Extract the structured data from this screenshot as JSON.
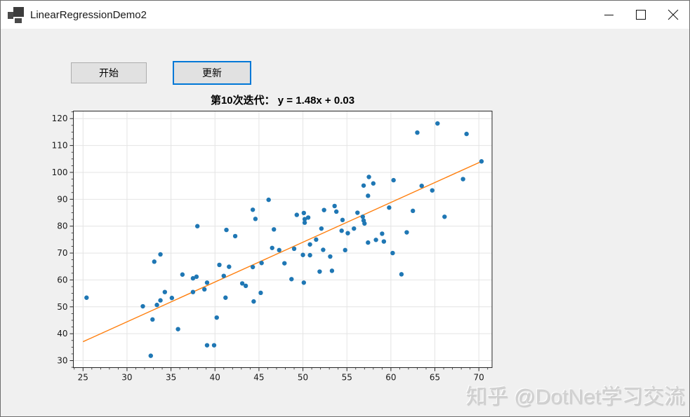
{
  "window": {
    "title": "LinearRegressionDemo2"
  },
  "toolbar": {
    "start_label": "开始",
    "update_label": "更新"
  },
  "watermark": {
    "text": "知乎 @DotNet学习交流"
  },
  "colors": {
    "form_background": "#f0f0f0",
    "titlebar_background": "#ffffff",
    "button_background": "#e1e1e1",
    "button_border": "#adadad",
    "focused_button_border": "#0078d7",
    "plot_background": "#ffffff",
    "grid": "#e4e4e4",
    "axis": "#262626",
    "point": "#1f77b4",
    "line": "#ff7f0e"
  },
  "chart_data": {
    "type": "scatter",
    "title": "第10次迭代： y = 1.48x + 0.03",
    "xlabel": "",
    "ylabel": "",
    "xlim": [
      23.9,
      71.5
    ],
    "ylim": [
      27.4,
      122.8
    ],
    "x_ticks": [
      25,
      30,
      35,
      40,
      45,
      50,
      55,
      60,
      65,
      70
    ],
    "y_ticks": [
      30,
      40,
      50,
      60,
      70,
      80,
      90,
      100,
      110,
      120
    ],
    "x_minor_step": 1,
    "y_minor_step": 2.5,
    "grid": true,
    "legend": "none",
    "point_color": "#1f77b4",
    "points": [
      [
        25.4,
        53.4
      ],
      [
        31.8,
        50.2
      ],
      [
        32.7,
        31.8
      ],
      [
        32.9,
        45.3
      ],
      [
        33.1,
        66.8
      ],
      [
        33.4,
        50.7
      ],
      [
        33.8,
        69.5
      ],
      [
        33.8,
        52.4
      ],
      [
        34.3,
        55.5
      ],
      [
        35.1,
        53.3
      ],
      [
        35.8,
        41.7
      ],
      [
        36.3,
        62.0
      ],
      [
        37.5,
        60.6
      ],
      [
        37.9,
        61.2
      ],
      [
        37.5,
        55.5
      ],
      [
        38.0,
        80.0
      ],
      [
        38.8,
        56.5
      ],
      [
        39.1,
        59.0
      ],
      [
        39.1,
        35.7
      ],
      [
        39.9,
        35.7
      ],
      [
        40.2,
        46.0
      ],
      [
        40.5,
        65.6
      ],
      [
        41.0,
        61.5
      ],
      [
        41.2,
        53.4
      ],
      [
        41.3,
        78.6
      ],
      [
        41.6,
        64.9
      ],
      [
        42.3,
        76.3
      ],
      [
        43.1,
        58.7
      ],
      [
        43.5,
        57.8
      ],
      [
        44.3,
        64.8
      ],
      [
        44.3,
        86.1
      ],
      [
        44.4,
        52.0
      ],
      [
        44.6,
        82.7
      ],
      [
        45.2,
        55.2
      ],
      [
        45.3,
        66.3
      ],
      [
        46.1,
        89.8
      ],
      [
        46.5,
        71.9
      ],
      [
        46.7,
        78.8
      ],
      [
        47.3,
        71.1
      ],
      [
        47.9,
        66.2
      ],
      [
        48.7,
        60.3
      ],
      [
        49.0,
        71.6
      ],
      [
        49.3,
        84.2
      ],
      [
        50.0,
        69.3
      ],
      [
        50.1,
        84.9
      ],
      [
        50.1,
        59.0
      ],
      [
        50.2,
        82.6
      ],
      [
        50.2,
        81.3
      ],
      [
        50.6,
        83.2
      ],
      [
        50.8,
        69.2
      ],
      [
        50.8,
        73.2
      ],
      [
        51.5,
        75.0
      ],
      [
        51.9,
        63.1
      ],
      [
        52.1,
        79.1
      ],
      [
        52.3,
        71.2
      ],
      [
        52.4,
        86.0
      ],
      [
        53.1,
        68.7
      ],
      [
        53.3,
        63.4
      ],
      [
        53.6,
        87.5
      ],
      [
        53.8,
        85.4
      ],
      [
        54.4,
        78.3
      ],
      [
        54.5,
        82.3
      ],
      [
        54.8,
        71.1
      ],
      [
        55.1,
        77.4
      ],
      [
        55.8,
        79.1
      ],
      [
        56.2,
        85.0
      ],
      [
        56.8,
        83.5
      ],
      [
        56.9,
        82.1
      ],
      [
        57.0,
        81.0
      ],
      [
        56.9,
        95.1
      ],
      [
        57.4,
        91.3
      ],
      [
        57.5,
        98.3
      ],
      [
        58.0,
        95.9
      ],
      [
        57.4,
        73.9
      ],
      [
        58.3,
        74.9
      ],
      [
        59.2,
        74.3
      ],
      [
        59.0,
        77.2
      ],
      [
        59.8,
        86.9
      ],
      [
        60.3,
        97.1
      ],
      [
        60.2,
        70.0
      ],
      [
        61.2,
        62.1
      ],
      [
        61.8,
        77.7
      ],
      [
        62.5,
        85.7
      ],
      [
        63.0,
        114.8
      ],
      [
        63.5,
        95.0
      ],
      [
        64.7,
        93.3
      ],
      [
        65.3,
        118.2
      ],
      [
        66.1,
        83.5
      ],
      [
        68.2,
        97.5
      ],
      [
        68.6,
        114.3
      ],
      [
        70.3,
        104.1
      ]
    ],
    "line": {
      "slope": 1.48,
      "intercept": 0.03,
      "x_start": 25,
      "x_end": 70.3,
      "color": "#ff7f0e"
    }
  }
}
